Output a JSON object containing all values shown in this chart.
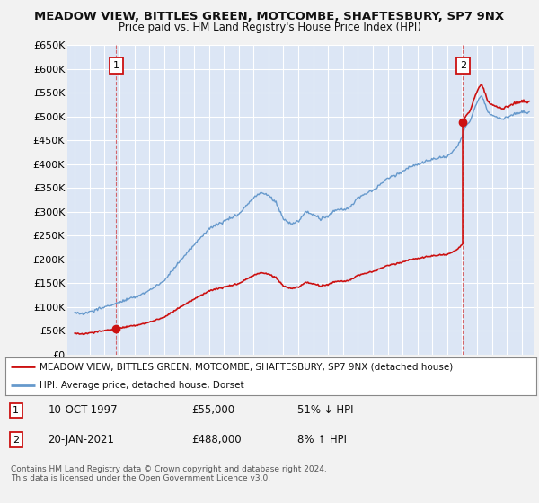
{
  "title": "MEADOW VIEW, BITTLES GREEN, MOTCOMBE, SHAFTESBURY, SP7 9NX",
  "subtitle": "Price paid vs. HM Land Registry's House Price Index (HPI)",
  "bg_color": "#f0f0f0",
  "plot_bg_color": "#dce6f5",
  "grid_color": "#ffffff",
  "sale1_year": 1997.78,
  "sale1_price": 55000,
  "sale2_year": 2021.05,
  "sale2_price": 488000,
  "hpi_color": "#6699cc",
  "price_color": "#cc1111",
  "legend_label_price": "MEADOW VIEW, BITTLES GREEN, MOTCOMBE, SHAFTESBURY, SP7 9NX (detached house)",
  "legend_label_hpi": "HPI: Average price, detached house, Dorset",
  "note1_date": "10-OCT-1997",
  "note1_price": "£55,000",
  "note1_hpi": "51% ↓ HPI",
  "note2_date": "20-JAN-2021",
  "note2_price": "£488,000",
  "note2_hpi": "8% ↑ HPI",
  "copyright": "Contains HM Land Registry data © Crown copyright and database right 2024.\nThis data is licensed under the Open Government Licence v3.0.",
  "ylim_min": 0,
  "ylim_max": 650000,
  "ytick_step": 50000,
  "xmin": 1994.5,
  "xmax": 2025.8
}
